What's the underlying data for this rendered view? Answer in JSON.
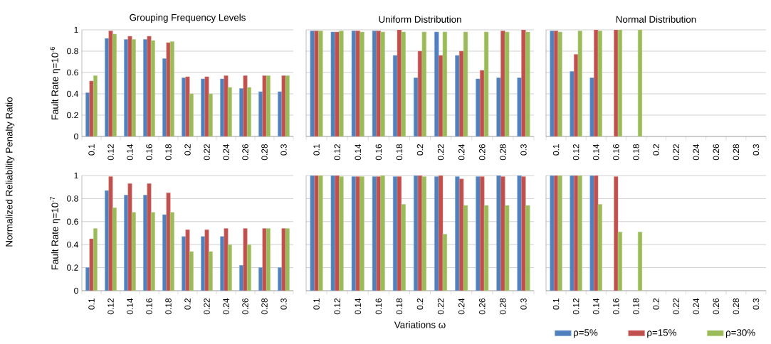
{
  "chart_data": [
    {
      "type": "bar",
      "title": "Grouping Frequency Levels",
      "ylabel": "Fault Rate η=10$^{-6}$",
      "annotations": [
        "Normalized Reliability Penalty Ratio"
      ],
      "categories": [
        "0.1",
        "0.12",
        "0.14",
        "0.16",
        "0.18",
        "0.2",
        "0.22",
        "0.24",
        "0.26",
        "0.28",
        "0.3"
      ],
      "ylim": [
        0,
        1
      ],
      "yticks": [
        0,
        0.2,
        0.4,
        0.6,
        0.8,
        1
      ],
      "grid": "y",
      "series": [
        {
          "color": "#4f81bd",
          "values": [
            0.41,
            0.92,
            0.91,
            0.91,
            0.73,
            0.55,
            0.54,
            0.54,
            0.45,
            0.42,
            0.42
          ]
        },
        {
          "color": "#c0504d",
          "values": [
            0.52,
            0.99,
            0.94,
            0.94,
            0.88,
            0.56,
            0.56,
            0.57,
            0.57,
            0.57,
            0.57
          ]
        },
        {
          "color": "#9bbb59",
          "values": [
            0.57,
            0.96,
            0.91,
            0.9,
            0.89,
            0.4,
            0.4,
            0.46,
            0.46,
            0.57,
            0.57
          ]
        }
      ]
    },
    {
      "type": "bar",
      "title": "Uniform Distribution",
      "categories": [
        "0.1",
        "0.12",
        "0.14",
        "0.16",
        "0.18",
        "0.2",
        "0.22",
        "0.24",
        "0.26",
        "0.28",
        "0.3"
      ],
      "ylim": [
        0,
        1
      ],
      "yticks": [
        0,
        0.2,
        0.4,
        0.6,
        0.8,
        1
      ],
      "grid": "y",
      "tick_labels": "x",
      "series": [
        {
          "color": "#4f81bd",
          "values": [
            0.99,
            0.98,
            0.99,
            0.99,
            0.76,
            0.55,
            0.98,
            0.76,
            0.54,
            0.55,
            0.55
          ]
        },
        {
          "color": "#c0504d",
          "values": [
            0.99,
            0.98,
            0.99,
            0.99,
            1.0,
            0.8,
            0.76,
            0.8,
            0.62,
            0.99,
            1.0
          ]
        },
        {
          "color": "#9bbb59",
          "values": [
            0.99,
            0.99,
            0.98,
            0.98,
            0.98,
            0.98,
            0.98,
            0.98,
            0.98,
            0.98,
            0.98
          ]
        }
      ]
    },
    {
      "type": "bar",
      "title": "Normal Distribution",
      "categories": [
        "0.1",
        "0.12",
        "0.14",
        "0.16",
        "0.18",
        "0.2",
        "0.22",
        "0.24",
        "0.26",
        "0.28",
        "0.3"
      ],
      "ylim": [
        0,
        1
      ],
      "yticks": [
        0,
        0.2,
        0.4,
        0.6,
        0.8,
        1
      ],
      "grid": "y",
      "tick_labels": "x",
      "series": [
        {
          "color": "#4f81bd",
          "values": [
            0.99,
            0.61,
            0.55,
            null,
            null,
            null,
            null,
            null,
            null,
            null,
            null
          ]
        },
        {
          "color": "#c0504d",
          "values": [
            0.99,
            0.77,
            1.0,
            1.0,
            null,
            null,
            null,
            null,
            null,
            null,
            null
          ]
        },
        {
          "color": "#9bbb59",
          "values": [
            0.98,
            0.99,
            0.99,
            1.0,
            1.0,
            null,
            null,
            null,
            null,
            null,
            null
          ]
        }
      ]
    },
    {
      "type": "bar",
      "ylabel": "Fault Rate η=10$^{-7}$",
      "categories": [
        "0.1",
        "0.12",
        "0.14",
        "0.16",
        "0.18",
        "0.2",
        "0.22",
        "0.24",
        "0.26",
        "0.28",
        "0.3"
      ],
      "ylim": [
        0,
        1
      ],
      "yticks": [
        0,
        0.2,
        0.4,
        0.6,
        0.8,
        1
      ],
      "grid": "y",
      "series": [
        {
          "color": "#4f81bd",
          "values": [
            0.2,
            0.87,
            0.83,
            0.83,
            0.66,
            0.47,
            0.47,
            0.47,
            0.22,
            0.2,
            0.2
          ]
        },
        {
          "color": "#c0504d",
          "values": [
            0.45,
            0.99,
            0.93,
            0.93,
            0.85,
            0.53,
            0.53,
            0.54,
            0.54,
            0.54,
            0.54
          ]
        },
        {
          "color": "#9bbb59",
          "values": [
            0.54,
            0.72,
            0.68,
            0.68,
            0.68,
            0.34,
            0.34,
            0.4,
            0.4,
            0.54,
            0.54
          ]
        }
      ]
    },
    {
      "type": "bar",
      "xlabel": "Variations ω",
      "categories": [
        "0.1",
        "0.12",
        "0.14",
        "0.16",
        "0.18",
        "0.2",
        "0.22",
        "0.24",
        "0.26",
        "0.28",
        "0.3"
      ],
      "ylim": [
        0,
        1
      ],
      "yticks": [
        0,
        0.2,
        0.4,
        0.6,
        0.8,
        1
      ],
      "grid": "y",
      "tick_labels": "x",
      "series": [
        {
          "color": "#4f81bd",
          "values": [
            1.0,
            1.0,
            0.99,
            0.99,
            0.99,
            1.0,
            0.99,
            0.99,
            0.99,
            1.0,
            1.0
          ]
        },
        {
          "color": "#c0504d",
          "values": [
            1.0,
            1.0,
            0.99,
            0.99,
            0.99,
            1.0,
            1.0,
            0.97,
            0.99,
            0.99,
            0.99
          ]
        },
        {
          "color": "#9bbb59",
          "values": [
            1.0,
            0.99,
            0.99,
            1.0,
            0.75,
            0.99,
            0.49,
            0.74,
            0.74,
            0.74,
            0.74
          ]
        }
      ]
    },
    {
      "type": "bar",
      "categories": [
        "0.1",
        "0.12",
        "0.14",
        "0.16",
        "0.18",
        "0.2",
        "0.22",
        "0.24",
        "0.26",
        "0.28",
        "0.3"
      ],
      "ylim": [
        0,
        1
      ],
      "yticks": [
        0,
        0.2,
        0.4,
        0.6,
        0.8,
        1
      ],
      "grid": "y",
      "tick_labels": "x",
      "legend": "bottom",
      "series": [
        {
          "name": "ρ=5%",
          "color": "#4f81bd",
          "values": [
            1.0,
            1.0,
            1.0,
            null,
            null,
            null,
            null,
            null,
            null,
            null,
            null
          ]
        },
        {
          "name": "ρ=15%",
          "color": "#c0504d",
          "values": [
            1.0,
            1.0,
            1.0,
            0.99,
            null,
            null,
            null,
            null,
            null,
            null,
            null
          ]
        },
        {
          "name": "ρ=30%",
          "color": "#9bbb59",
          "values": [
            1.0,
            1.0,
            0.75,
            0.51,
            0.51,
            null,
            null,
            null,
            null,
            null,
            null
          ]
        }
      ]
    }
  ]
}
